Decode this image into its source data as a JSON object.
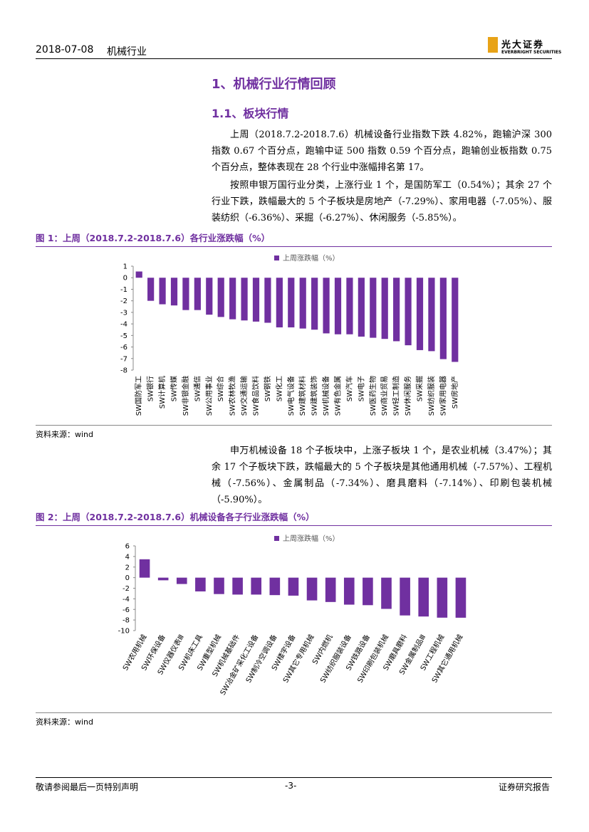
{
  "header": {
    "date": "2018-07-08",
    "industry": "机械行业",
    "logo": "光大证券",
    "logo_en": "EVERBRIGHT SECURITIES"
  },
  "heading": "1、机械行业行情回顾",
  "subheading": "1.1、板块行情",
  "paragraphs": [
    "上周（2018.7.2-2018.7.6）机械设备行业指数下跌 4.82%，跑输沪深 300 指数 0.67 个百分点，跑输中证 500 指数 0.59 个百分点，跑输创业板指数 0.75 个百分点，整体表现在 28 个行业中涨幅排名第 17。",
    "按照申银万国行业分类，上涨行业 1 个，是国防军工（0.54%）；其余 27 个行业下跌，跌幅最大的 5 个子板块是房地产（-7.29%）、家用电器（-7.05%）、服装纺织（-6.36%）、采掘（-6.27%）、休闲服务（-5.85%）。",
    "申万机械设备 18 个子板块中，上涨子板块 1 个，是农业机械（3.47%）；其余 17 个子板块下跌，跌幅最大的 5 个子板块是其他通用机械（-7.57%）、工程机械（-7.56%）、金属制品（-7.34%）、磨具磨料（-7.14%）、印刷包装机械（-5.90%）。"
  ],
  "figures": [
    {
      "caption": "图 1：上周（2018.7.2-2018.7.6）各行业涨跌幅（%）",
      "source": "资料来源：wind"
    },
    {
      "caption": "图 2：上周（2018.7.2-2018.7.6）机械设备各子行业涨跌幅（%）",
      "source": "资料来源：wind"
    }
  ],
  "chart_data": [
    {
      "type": "bar",
      "categories": [
        "SW国防军工",
        "SW银行",
        "SW计算机",
        "SW传媒",
        "SW非银金融",
        "SW通信",
        "SW公用事业",
        "SW综合",
        "SW农林牧渔",
        "SW交通运输",
        "SW食品饮料",
        "SW钢铁",
        "SW化工",
        "SW电气设备",
        "SW建筑材料",
        "SW建筑装饰",
        "SW机械设备",
        "SW有色金属",
        "SW汽车",
        "SW电子",
        "SW医药生物",
        "SW商业贸易",
        "SW轻工制造",
        "SW休闲服务",
        "SW采掘",
        "SW纺织服装",
        "SW家用电器",
        "SW房地产"
      ],
      "series": [
        {
          "name": "上周涨跌幅（%）",
          "color": "#7030a0",
          "values": [
            0.54,
            -2.0,
            -2.3,
            -2.4,
            -2.8,
            -2.8,
            -3.2,
            -3.4,
            -3.6,
            -3.7,
            -3.8,
            -3.9,
            -4.3,
            -4.3,
            -4.4,
            -4.5,
            -4.82,
            -4.9,
            -4.9,
            -5.1,
            -5.2,
            -5.3,
            -5.5,
            -5.85,
            -6.27,
            -6.36,
            -7.05,
            -7.29
          ]
        }
      ],
      "ylim": [
        -8,
        1
      ],
      "yticks": [
        -8,
        -7,
        -6,
        -5,
        -4,
        -3,
        -2,
        -1,
        0,
        1
      ],
      "legend": "top"
    },
    {
      "type": "bar",
      "categories": [
        "SW农用机械",
        "SW环保设备",
        "SW仪器仪表Ⅲ",
        "SW机床工具",
        "SW重型机械",
        "SW机械基础件",
        "SW冶金矿采化工设备",
        "SW制冷空调设备",
        "SW楼宇设备",
        "SW其它专用机械",
        "SW内燃机",
        "SW纺织服装设备",
        "SW铁路设备",
        "SW印刷包装机械",
        "SW磨具磨料",
        "SW金属制品Ⅲ",
        "SW工程机械",
        "SW其它通用机械"
      ],
      "series": [
        {
          "name": "上周涨跌幅（%）",
          "color": "#7030a0",
          "values": [
            3.47,
            -0.5,
            -1.2,
            -2.6,
            -3.1,
            -3.2,
            -3.2,
            -3.3,
            -3.4,
            -4.3,
            -4.6,
            -5.1,
            -5.2,
            -5.9,
            -7.14,
            -7.34,
            -7.56,
            -7.57
          ]
        }
      ],
      "ylim": [
        -10,
        6
      ],
      "yticks": [
        -10,
        -8,
        -6,
        -4,
        -2,
        0,
        2,
        4,
        6
      ],
      "legend": "top"
    }
  ],
  "footer": {
    "left": "敬请参阅最后一页特别声明",
    "page": "-3-",
    "right": "证券研究报告"
  }
}
